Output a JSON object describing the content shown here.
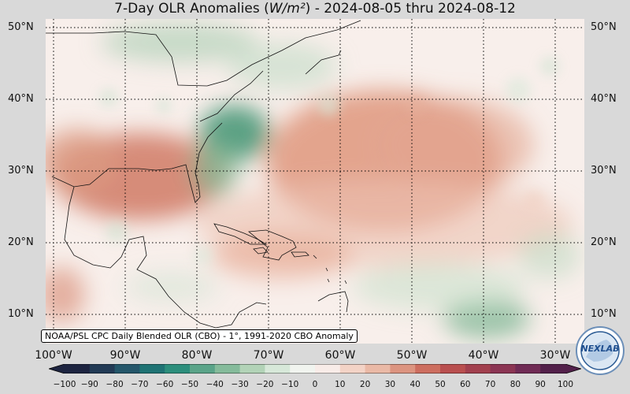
{
  "title": {
    "prefix": "7-Day OLR Anomalies (",
    "unit": "W/m²",
    "suffix": ") - 2024-08-05 thru 2024-08-12"
  },
  "latitude_labels": [
    "50°N",
    "40°N",
    "30°N",
    "20°N",
    "10°N"
  ],
  "longitude_labels": [
    "100°W",
    "90°W",
    "80°W",
    "70°W",
    "60°W",
    "50°W",
    "40°W",
    "30°W"
  ],
  "source_label": "NOAA/PSL CPC Daily Blended OLR (CBO) - 1°, 1991-2020 CBO Anomaly",
  "colorbar": {
    "ticks": [
      "−100",
      "−90",
      "−80",
      "−70",
      "−60",
      "−50",
      "−40",
      "−30",
      "−20",
      "−10",
      "0",
      "10",
      "20",
      "30",
      "40",
      "50",
      "60",
      "70",
      "80",
      "90",
      "100"
    ],
    "colors": [
      "#1d2440",
      "#223a55",
      "#24566a",
      "#1f7374",
      "#2c8e7c",
      "#5aa489",
      "#85bb9b",
      "#b2d3b7",
      "#d7e8d9",
      "#f1f4ef",
      "#f8ece8",
      "#f3d3c6",
      "#eab9a6",
      "#dc9480",
      "#cd6e5f",
      "#b94f4f",
      "#a2404e",
      "#8b3553",
      "#702b55",
      "#52204a"
    ]
  },
  "logo": {
    "text": "NEXLAB"
  },
  "colors": {
    "background": "#d9d9d9",
    "warm_anomaly": "#d98a72",
    "cool_anomaly": "#4f9f7a"
  }
}
